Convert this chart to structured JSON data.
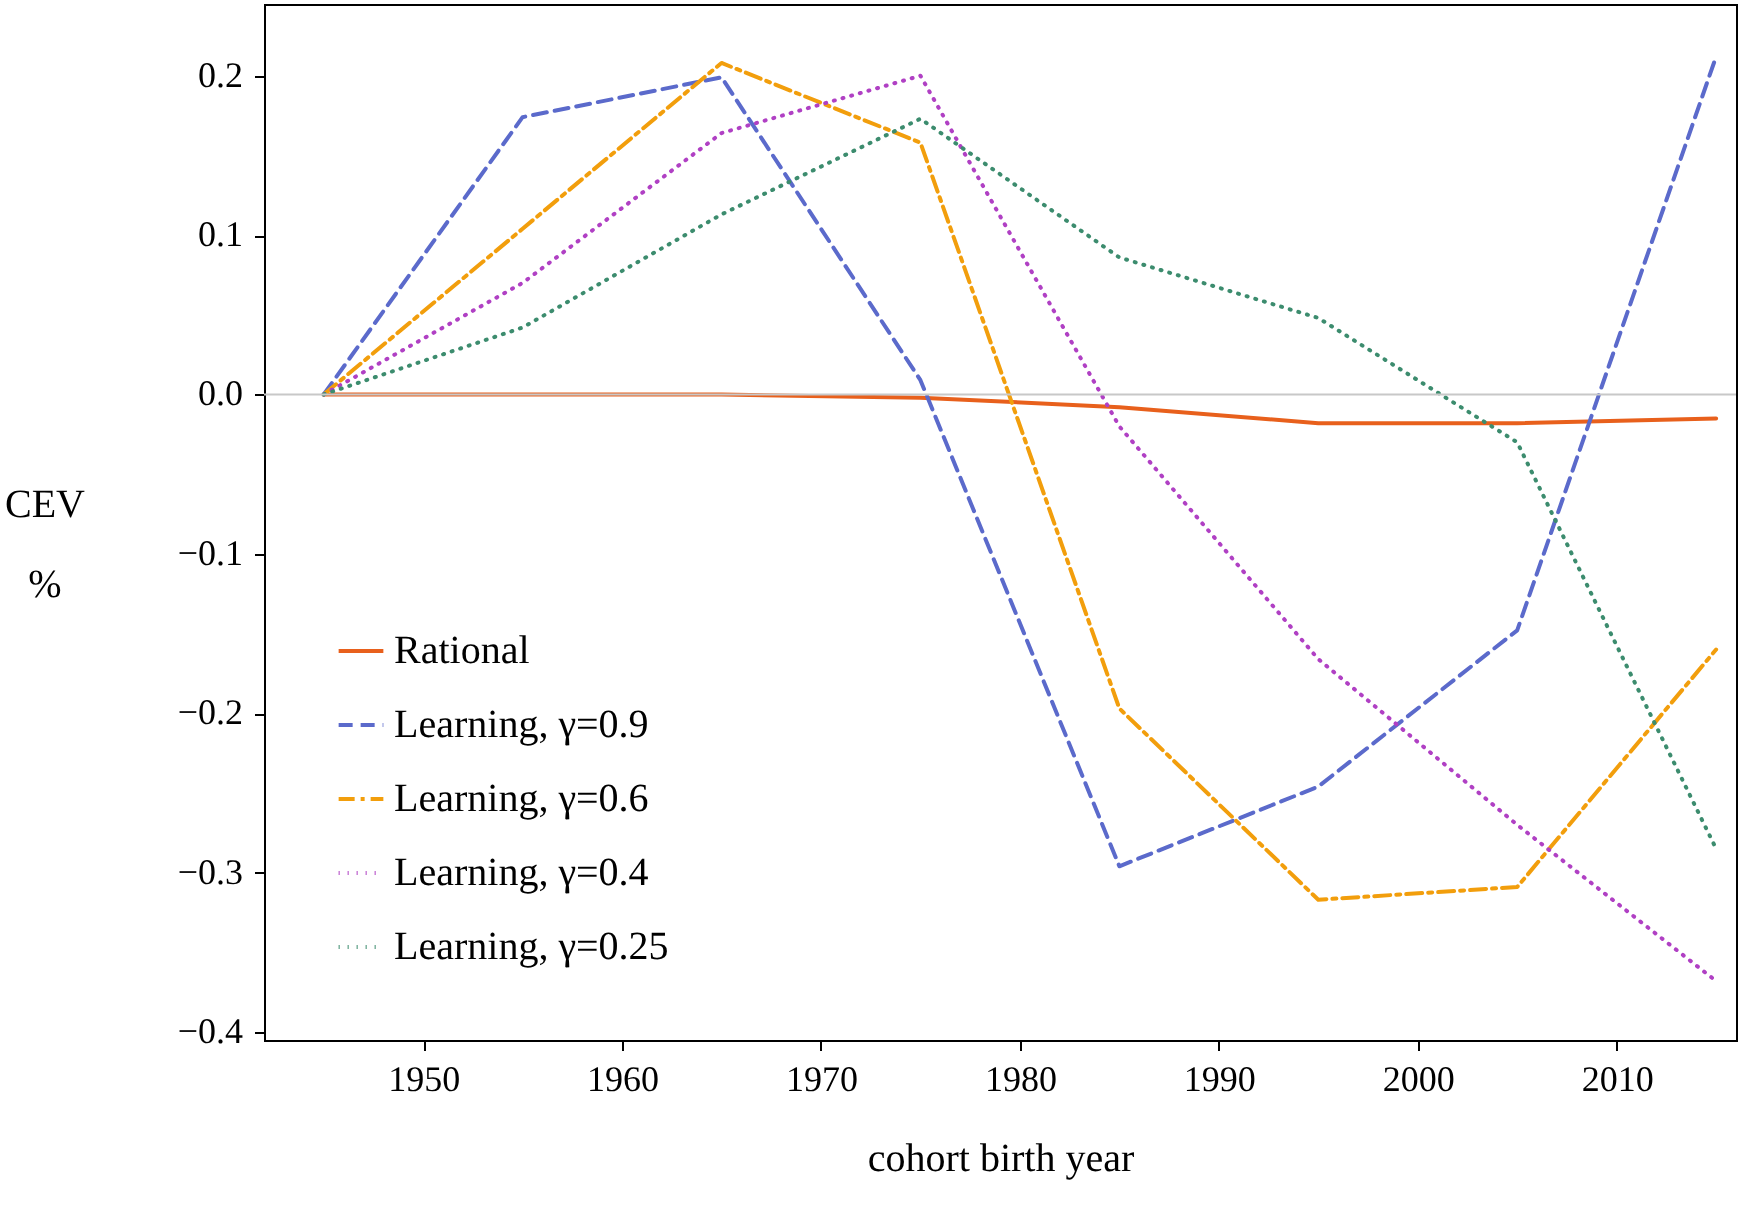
{
  "chart_data": {
    "type": "line",
    "xlabel": "cohort birth year",
    "ylabel": "CEV\n%",
    "x": [
      1945,
      1955,
      1965,
      1975,
      1985,
      1995,
      2005,
      2015
    ],
    "series": [
      {
        "name": "Rational",
        "color": "#e8601c",
        "line_style": "solid",
        "values": [
          0,
          0,
          0,
          -0.002,
          -0.008,
          -0.018,
          -0.018,
          -0.015
        ]
      },
      {
        "name": "Learning, γ=0.9",
        "color": "#5b6acb",
        "line_style": "dashed",
        "values": [
          0,
          0.174,
          0.199,
          0.009,
          -0.296,
          -0.246,
          -0.148,
          0.212
        ]
      },
      {
        "name": "Learning, γ=0.6",
        "color": "#f29e0c",
        "line_style": "dashdot",
        "values": [
          0,
          0.104,
          0.208,
          0.158,
          -0.197,
          -0.317,
          -0.309,
          -0.16
        ]
      },
      {
        "name": "Learning, γ=0.4",
        "color": "#b040c4",
        "line_style": "dotted",
        "values": [
          0,
          0.07,
          0.164,
          0.2,
          -0.02,
          -0.166,
          -0.27,
          -0.368
        ]
      },
      {
        "name": "Learning, γ=0.25",
        "color": "#3c8c6e",
        "line_style": "dotted",
        "values": [
          0,
          0.042,
          0.113,
          0.173,
          0.086,
          0.048,
          -0.03,
          -0.285
        ]
      }
    ],
    "xlim": [
      1942,
      2016
    ],
    "ylim": [
      -0.405,
      0.245
    ],
    "xticks": [
      1950,
      1960,
      1970,
      1980,
      1990,
      2000,
      2010
    ],
    "yticks": [
      {
        "value": -0.4,
        "label": "−0.4"
      },
      {
        "value": -0.3,
        "label": "−0.3"
      },
      {
        "value": -0.2,
        "label": "−0.2"
      },
      {
        "value": -0.1,
        "label": "−0.1"
      },
      {
        "value": 0,
        "label": "0.0"
      },
      {
        "value": 0.1,
        "label": "0.1"
      },
      {
        "value": 0.2,
        "label": "0.2"
      }
    ],
    "ref_lines": [
      {
        "axis": "y",
        "value": 0,
        "color": "#c8c8c8"
      }
    ],
    "grid": false,
    "legend": "bottom left",
    "marker": "none"
  }
}
